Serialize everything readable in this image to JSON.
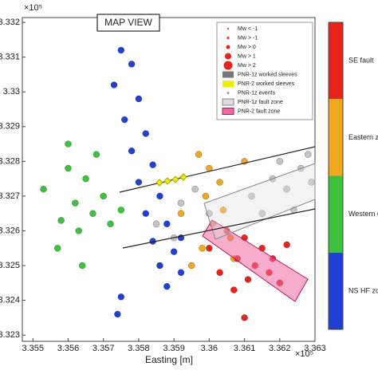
{
  "chart_data": {
    "type": "scatter",
    "title": "MAP VIEW",
    "x_label": "Easting [m]",
    "x_multiplier": "×10⁵",
    "y_multiplier": "×10⁵",
    "xlim": [
      3.3547,
      3.363
    ],
    "ylim": [
      3.32282,
      3.33214
    ],
    "xticks": [
      3.355,
      3.356,
      3.357,
      3.358,
      3.359,
      3.36,
      3.361,
      3.362,
      3.363
    ],
    "yticks": [
      3.323,
      3.324,
      3.325,
      3.326,
      3.327,
      3.328,
      3.329,
      3.33,
      3.331,
      3.332
    ],
    "legend": [
      "Mw < -1",
      "Mw > -1",
      "Mw > 0",
      "Mw > 1",
      "Mw > 2",
      "PNR-1z worked sleeves",
      "PNR-2 worked sleeves",
      "PNR-1z events",
      "PNR-1z fault zone",
      "PNR-2 fault zone"
    ],
    "colorbar": [
      "SE fault",
      "Eastern zone",
      "Western clu",
      "NS HF zone"
    ],
    "series": [
      {
        "color": "#1f3fd6",
        "x": [
          3.3575,
          3.3578,
          3.3573,
          3.358,
          3.3576,
          3.3582,
          3.3578,
          3.3584,
          3.358,
          3.3586,
          3.3582,
          3.3588,
          3.3584,
          3.359,
          3.3586,
          3.3592,
          3.3588,
          3.3575,
          3.3574,
          3.3592
        ],
        "y": [
          3.3312,
          3.3308,
          3.3302,
          3.3298,
          3.3292,
          3.3288,
          3.3283,
          3.3279,
          3.3274,
          3.327,
          3.3265,
          3.3262,
          3.3257,
          3.3254,
          3.325,
          3.3248,
          3.3244,
          3.3241,
          3.3236,
          3.3258
        ]
      },
      {
        "color": "#3cc23c",
        "x": [
          3.356,
          3.3565,
          3.357,
          3.3562,
          3.3567,
          3.3558,
          3.3563,
          3.3572,
          3.3553,
          3.3568,
          3.3557,
          3.3564,
          3.3575,
          3.356
        ],
        "y": [
          3.3278,
          3.3275,
          3.327,
          3.3268,
          3.3265,
          3.3263,
          3.326,
          3.3262,
          3.3272,
          3.3282,
          3.3255,
          3.325,
          3.3266,
          3.3285
        ]
      },
      {
        "color": "#f0a81e",
        "x": [
          3.3597,
          3.36,
          3.3603,
          3.3599,
          3.3604,
          3.3601,
          3.3606,
          3.3598,
          3.3595,
          3.361,
          3.3592,
          3.3607
        ],
        "y": [
          3.3282,
          3.3278,
          3.3274,
          3.327,
          3.3266,
          3.3262,
          3.3258,
          3.3255,
          3.325,
          3.328,
          3.3265,
          3.3252
        ]
      },
      {
        "color": "#e8231c",
        "x": [
          3.3605,
          3.361,
          3.3615,
          3.3608,
          3.3613,
          3.3618,
          3.3603,
          3.3611,
          3.3617,
          3.3622,
          3.3607,
          3.361,
          3.362,
          3.36
        ],
        "y": [
          3.326,
          3.3258,
          3.3255,
          3.3252,
          3.325,
          3.3252,
          3.3248,
          3.3246,
          3.3248,
          3.3256,
          3.3243,
          3.3235,
          3.3245,
          3.3255
        ]
      },
      {
        "color": "#c4c4c4",
        "x": [
          3.3592,
          3.3596,
          3.36,
          3.3612,
          3.3618,
          3.3622,
          3.3626,
          3.3629,
          3.3615,
          3.3624,
          3.3585,
          3.359,
          3.3628,
          3.362
        ],
        "y": [
          3.3268,
          3.3272,
          3.3265,
          3.327,
          3.3275,
          3.3272,
          3.3278,
          3.3274,
          3.3265,
          3.3266,
          3.3262,
          3.3258,
          3.3282,
          3.328
        ]
      }
    ]
  }
}
